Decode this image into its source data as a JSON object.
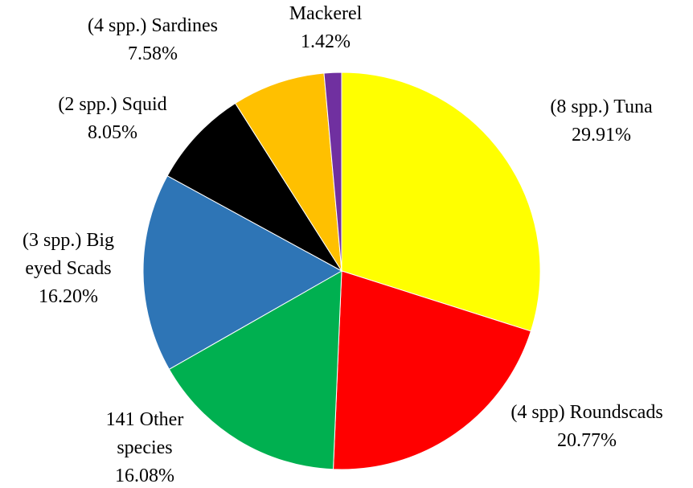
{
  "chart_data": {
    "type": "pie",
    "categories": [
      "(8 spp.) Tuna",
      "(4 spp) Roundscads",
      "141 Other species",
      "(3 spp.) Big eyed Scads",
      "(2 spp.) Squid",
      "(4 spp.) Sardines",
      "Mackerel"
    ],
    "values": [
      29.91,
      20.77,
      16.08,
      16.2,
      8.05,
      7.58,
      1.42
    ],
    "value_labels": [
      "29.91%",
      "20.77%",
      "16.08%",
      "16.20%",
      "8.05%",
      "7.58%",
      "1.42%"
    ],
    "colors": [
      "#ffff00",
      "#ff0000",
      "#00b050",
      "#2e75b6",
      "#000000",
      "#ffc000",
      "#7030a0"
    ]
  }
}
